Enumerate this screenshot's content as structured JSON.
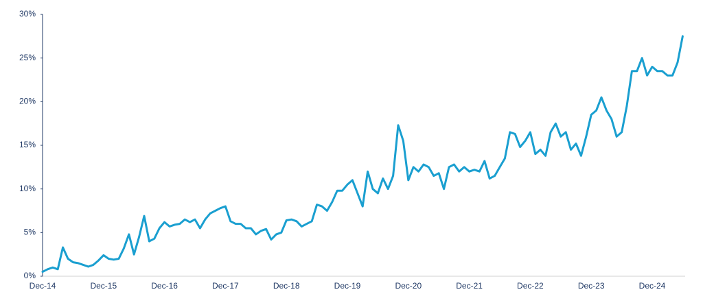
{
  "chart_data": {
    "type": "line",
    "categories": [
      "Dec-14",
      null,
      null,
      null,
      null,
      null,
      null,
      null,
      null,
      null,
      null,
      null,
      "Dec-15",
      null,
      null,
      null,
      null,
      null,
      null,
      null,
      null,
      null,
      null,
      null,
      "Dec-16",
      null,
      null,
      null,
      null,
      null,
      null,
      null,
      null,
      null,
      null,
      null,
      "Dec-17",
      null,
      null,
      null,
      null,
      null,
      null,
      null,
      null,
      null,
      null,
      null,
      "Dec-18",
      null,
      null,
      null,
      null,
      null,
      null,
      null,
      null,
      null,
      null,
      null,
      "Dec-19",
      null,
      null,
      null,
      null,
      null,
      null,
      null,
      null,
      null,
      null,
      null,
      "Dec-20",
      null,
      null,
      null,
      null,
      null,
      null,
      null,
      null,
      null,
      null,
      null,
      "Dec-21",
      null,
      null,
      null,
      null,
      null,
      null,
      null,
      null,
      null,
      null,
      null,
      "Dec-22",
      null,
      null,
      null,
      null,
      null,
      null,
      null,
      null,
      null,
      null,
      null,
      "Dec-23",
      null,
      null,
      null,
      null,
      null,
      null,
      null,
      null,
      null,
      null,
      null,
      "Dec-24",
      null,
      null,
      null,
      null,
      null,
      null
    ],
    "series": [
      {
        "color": "#1a9fd0",
        "values": [
          0.5,
          0.8,
          1.0,
          0.8,
          3.3,
          2.0,
          1.6,
          1.5,
          1.3,
          1.1,
          1.3,
          1.8,
          2.4,
          2.0,
          1.9,
          2.0,
          3.2,
          4.8,
          2.5,
          4.5,
          6.9,
          4.0,
          4.3,
          5.5,
          6.2,
          5.7,
          5.9,
          6.0,
          6.5,
          6.2,
          6.5,
          5.5,
          6.5,
          7.2,
          7.5,
          7.8,
          8.0,
          6.3,
          6.0,
          6.0,
          5.5,
          5.5,
          4.8,
          5.2,
          5.4,
          4.2,
          4.8,
          5.0,
          6.4,
          6.5,
          6.3,
          5.7,
          6.0,
          6.3,
          8.2,
          8.0,
          7.5,
          8.5,
          9.8,
          9.8,
          10.5,
          11.0,
          9.5,
          8.0,
          12.0,
          10.0,
          9.5,
          11.2,
          10.0,
          11.5,
          17.3,
          15.5,
          11.0,
          12.5,
          12.0,
          12.8,
          12.5,
          11.5,
          11.8,
          10.0,
          12.5,
          12.8,
          12.0,
          12.5,
          12.0,
          12.2,
          12.0,
          13.2,
          11.2,
          11.5,
          12.5,
          13.5,
          16.5,
          16.3,
          14.8,
          15.5,
          16.5,
          14.0,
          14.5,
          13.8,
          16.5,
          17.5,
          16.0,
          16.5,
          14.5,
          15.2,
          13.8,
          16.0,
          18.5,
          19.0,
          20.5,
          19.0,
          18.0,
          16.0,
          16.5,
          19.5,
          23.5,
          23.5,
          25.0,
          23.0,
          24.0,
          23.5,
          23.5,
          23.0,
          23.0,
          24.5,
          27.5
        ]
      }
    ],
    "ylim": [
      0,
      30
    ],
    "yticks": [
      {
        "value": 0,
        "label": "0%"
      },
      {
        "value": 5,
        "label": "5%"
      },
      {
        "value": 10,
        "label": "10%"
      },
      {
        "value": 15,
        "label": "15%"
      },
      {
        "value": 20,
        "label": "20%"
      },
      {
        "value": 25,
        "label": "25%"
      },
      {
        "value": 30,
        "label": "30%"
      }
    ],
    "grid": false
  }
}
